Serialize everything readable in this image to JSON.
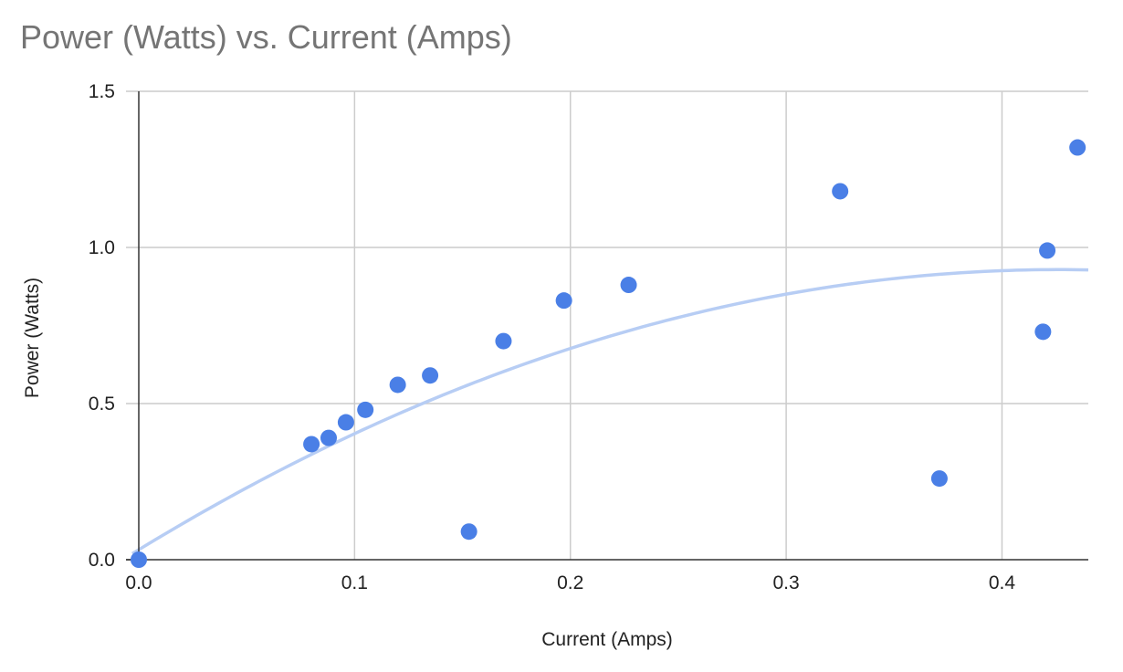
{
  "chart_data": {
    "type": "scatter",
    "title": "Power (Watts) vs. Current (Amps)",
    "xlabel": "Current (Amps)",
    "ylabel": "Power (Watts)",
    "xlim": [
      0,
      0.44
    ],
    "ylim": [
      0,
      1.5
    ],
    "x_ticks": [
      "0.0",
      "0.1",
      "0.2",
      "0.3",
      "0.4"
    ],
    "y_ticks": [
      "0.0",
      "0.5",
      "1.0",
      "1.5"
    ],
    "x_tick_values": [
      0,
      0.1,
      0.2,
      0.3,
      0.4
    ],
    "y_tick_values": [
      0,
      0.5,
      1.0,
      1.5
    ],
    "grid": true,
    "legend": "none",
    "color": "#4a7fe6",
    "trendline_color": "#b7cdf4",
    "trendline": {
      "type": "polynomial",
      "degree": 2,
      "coefficients": [
        0.032,
        4.21,
        -4.94
      ]
    },
    "series": [
      {
        "points": [
          [
            0.0,
            0.0
          ],
          [
            0.08,
            0.37
          ],
          [
            0.088,
            0.39
          ],
          [
            0.096,
            0.44
          ],
          [
            0.105,
            0.48
          ],
          [
            0.12,
            0.56
          ],
          [
            0.135,
            0.59
          ],
          [
            0.153,
            0.09
          ],
          [
            0.169,
            0.7
          ],
          [
            0.197,
            0.83
          ],
          [
            0.227,
            0.88
          ],
          [
            0.325,
            1.18
          ],
          [
            0.371,
            0.26
          ],
          [
            0.419,
            0.73
          ],
          [
            0.421,
            0.99
          ],
          [
            0.435,
            1.32
          ]
        ]
      }
    ]
  }
}
